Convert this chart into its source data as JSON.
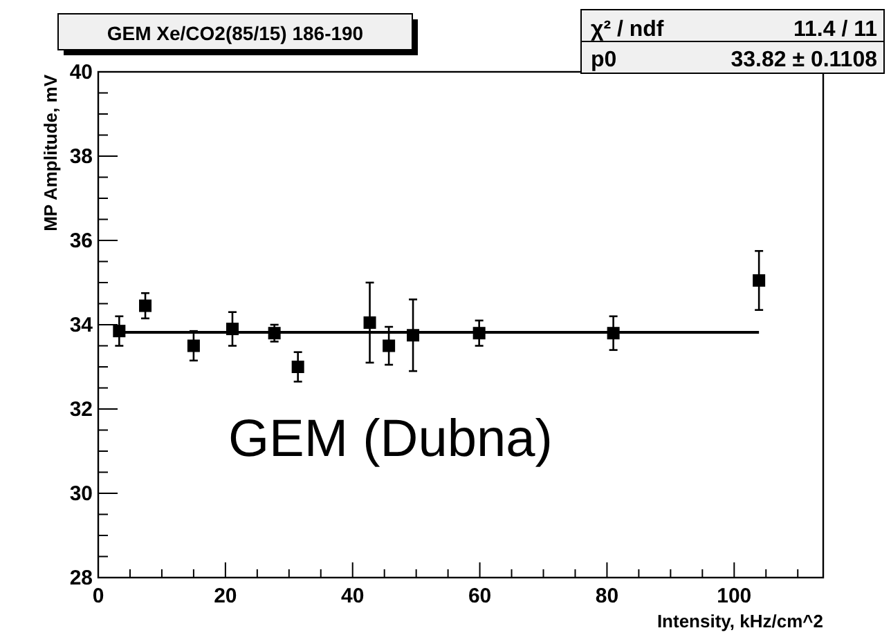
{
  "chart_data": {
    "type": "scatter",
    "title": "GEM Xe/CO2(85/15) 186-190",
    "xlabel": "Intensity, kHz/cm^2",
    "ylabel": "MP Amplitude, mV",
    "annotations": [
      "χ² / ndf",
      "11.4 / 11",
      "p0",
      "33.82 ± 0.1108",
      "GEM (Dubna)"
    ],
    "xlim": [
      0,
      114
    ],
    "ylim": [
      28,
      40
    ],
    "xticks": [
      0,
      {
        "value": 5,
        "label": null
      },
      {
        "value": 10,
        "label": null
      },
      {
        "value": 15,
        "label": null
      },
      20,
      {
        "value": 25,
        "label": null
      },
      {
        "value": 30,
        "label": null
      },
      {
        "value": 35,
        "label": null
      },
      40,
      {
        "value": 45,
        "label": null
      },
      {
        "value": 50,
        "label": null
      },
      {
        "value": 55,
        "label": null
      },
      60,
      {
        "value": 65,
        "label": null
      },
      {
        "value": 70,
        "label": null
      },
      {
        "value": 75,
        "label": null
      },
      80,
      {
        "value": 85,
        "label": null
      },
      {
        "value": 90,
        "label": null
      },
      {
        "value": 95,
        "label": null
      },
      100,
      {
        "value": 105,
        "label": null
      },
      {
        "value": 110,
        "label": null
      }
    ],
    "yticks": [
      28,
      {
        "value": 28.5,
        "label": null
      },
      {
        "value": 29,
        "label": null
      },
      {
        "value": 29.5,
        "label": null
      },
      30,
      {
        "value": 30.5,
        "label": null
      },
      {
        "value": 31,
        "label": null
      },
      {
        "value": 31.5,
        "label": null
      },
      32,
      {
        "value": 32.5,
        "label": null
      },
      {
        "value": 33,
        "label": null
      },
      {
        "value": 33.5,
        "label": null
      },
      34,
      {
        "value": 34.5,
        "label": null
      },
      {
        "value": 35,
        "label": null
      },
      {
        "value": 35.5,
        "label": null
      },
      36,
      {
        "value": 36.5,
        "label": null
      },
      {
        "value": 37,
        "label": null
      },
      {
        "value": 37.5,
        "label": null
      },
      38,
      {
        "value": 38.5,
        "label": null
      },
      {
        "value": 39,
        "label": null
      },
      {
        "value": 39.5,
        "label": null
      },
      40
    ],
    "grid": false,
    "marker": "square",
    "series": [
      {
        "color": "#000000",
        "x": [
          3.3,
          7.4,
          15,
          21.1,
          27.7,
          31.4,
          42.7,
          45.7,
          49.5,
          59.9,
          81,
          103.9
        ],
        "values": [
          33.85,
          34.45,
          33.5,
          33.9,
          33.8,
          33.0,
          34.05,
          33.5,
          33.75,
          33.8,
          33.8,
          35.05
        ],
        "errors": [
          0.35,
          0.3,
          0.35,
          0.4,
          0.2,
          0.35,
          0.95,
          0.45,
          0.85,
          0.3,
          0.4,
          0.7
        ]
      },
      {
        "type": "line",
        "color": "#000000",
        "x": [
          3.3,
          103.9
        ],
        "values": [
          33.82,
          33.82
        ],
        "line_style": "solid",
        "marker": "none"
      }
    ]
  }
}
